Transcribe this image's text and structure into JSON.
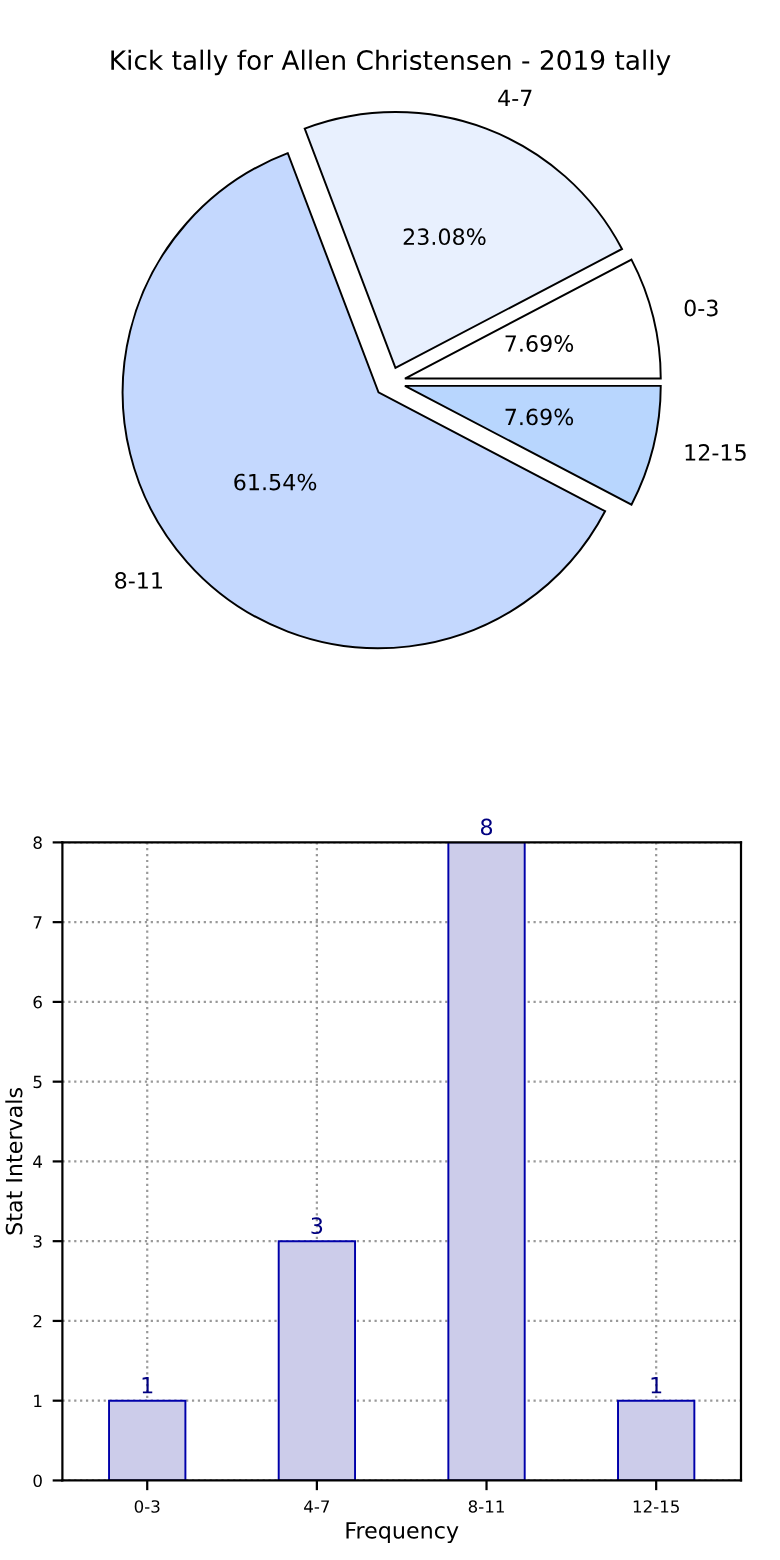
{
  "chart_data": [
    {
      "type": "pie",
      "title": "Kick tally for Allen Christensen - 2019 tally",
      "categories": [
        "0-3",
        "4-7",
        "8-11",
        "12-15"
      ],
      "values": [
        7.69,
        23.08,
        61.54,
        7.69
      ],
      "value_labels": [
        "7.69%",
        "23.08%",
        "61.54%",
        "7.69%"
      ],
      "colors": [
        "#ffffff",
        "#e8f0fe",
        "#c4d8fe",
        "#b8d6fe"
      ]
    },
    {
      "type": "bar",
      "categories": [
        "0-3",
        "4-7",
        "8-11",
        "12-15"
      ],
      "values": [
        1,
        3,
        8,
        1
      ],
      "color": "#ccccea",
      "xlabel": "Frequency",
      "ylabel": "Stat Intervals",
      "ylim": [
        0,
        8
      ],
      "yticks": [
        0,
        1,
        2,
        3,
        4,
        5,
        6,
        7,
        8
      ],
      "grid": true,
      "data_labels": true
    }
  ]
}
